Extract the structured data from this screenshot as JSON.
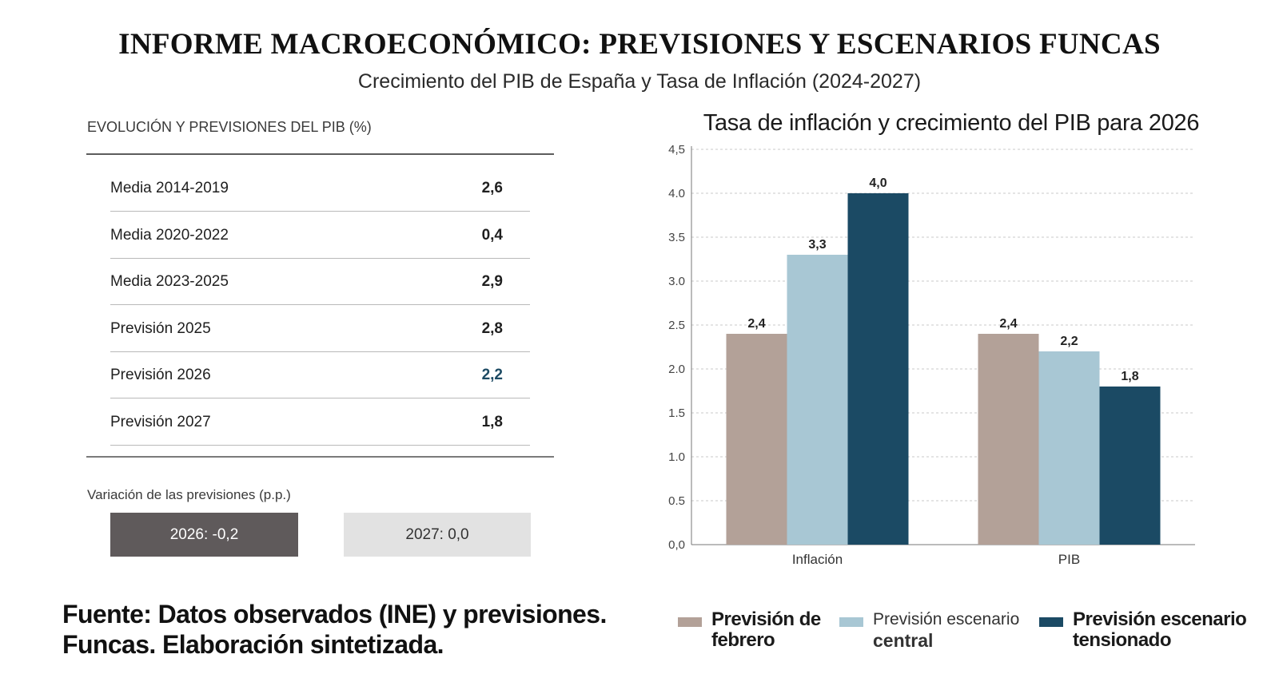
{
  "header": {
    "title": "INFORME MACROECONÓMICO: PREVISIONES Y ESCENARIOS FUNCAS",
    "subtitle": "Crecimiento del PIB de España y Tasa de Inflación (2024-2027)"
  },
  "table": {
    "title": "EVOLUCIÓN Y PREVISIONES DEL PIB (%)",
    "rows": [
      {
        "label": "Media 2014-2019",
        "value": "2,6"
      },
      {
        "label": "Media 2020-2022",
        "value": "0,4"
      },
      {
        "label": "Media 2023-2025",
        "value": "2,9"
      },
      {
        "label": "Previsión 2025",
        "value": "2,8"
      },
      {
        "label": "Previsión 2026",
        "value": "2,2"
      },
      {
        "label": "Previsión 2027",
        "value": "1,8"
      }
    ]
  },
  "variation": {
    "title": "Variación de las previsiones (p.p.)",
    "box_2026": "2026: -0,2",
    "box_2027": "2027: 0,0"
  },
  "source": {
    "line1": "Fuente: Datos observados (INE) y previsiones.",
    "line2": "Funcas. Elaboración sintetizada."
  },
  "chart_data": {
    "type": "bar",
    "title": "Tasa de inflación y crecimiento del PIB para 2026",
    "categories": [
      "Inflación",
      "PIB"
    ],
    "series": [
      {
        "name": "Previsión de febrero",
        "legend_lines": [
          "Previsión de",
          "febrero"
        ],
        "values": [
          2.4,
          2.4
        ],
        "labels": [
          "2,4",
          "2,4"
        ],
        "color": "#b3a198"
      },
      {
        "name": "Previsión escenario central",
        "legend_lines": [
          "Previsión escenario",
          "central"
        ],
        "values": [
          3.3,
          2.2
        ],
        "labels": [
          "3,3",
          "2,2"
        ],
        "color": "#a8c7d4"
      },
      {
        "name": "Previsión escenario tensionado",
        "legend_lines": [
          "Previsión escenario",
          "tensionado"
        ],
        "values": [
          4.0,
          1.8
        ],
        "labels": [
          "4,0",
          "1,8"
        ],
        "color": "#1b4a64"
      }
    ],
    "ylim": [
      0,
      4.5
    ],
    "yticks": [
      "0,0",
      "0.5",
      "1.0",
      "1.5",
      "2.0",
      "2.5",
      "3.0",
      "3.5",
      "4.0",
      "4,5"
    ],
    "grid": true,
    "legend_position": "bottom"
  }
}
